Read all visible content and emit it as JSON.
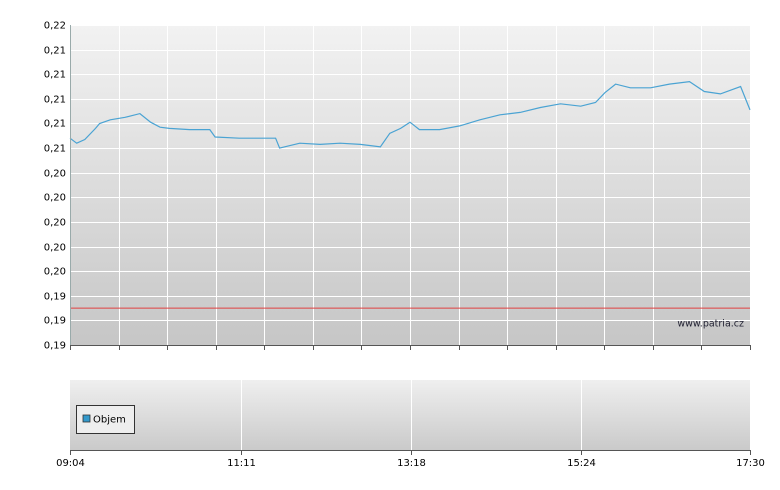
{
  "chart_data": [
    {
      "type": "line",
      "x": [
        "09:04",
        "09:09",
        "09:15",
        "09:23",
        "09:26",
        "09:34",
        "09:45",
        "09:56",
        "10:04",
        "10:11",
        "10:18",
        "10:33",
        "10:48",
        "10:52",
        "11:10",
        "11:37",
        "11:40",
        "11:55",
        "12:10",
        "12:25",
        "12:40",
        "12:55",
        "13:02",
        "13:10",
        "13:17",
        "13:24",
        "13:39",
        "13:54",
        "14:09",
        "14:24",
        "14:39",
        "14:54",
        "15:09",
        "15:24",
        "15:35",
        "15:42",
        "15:50",
        "16:01",
        "16:16",
        "16:30",
        "16:45",
        "16:56",
        "17:08",
        "17:23",
        "17:30"
      ],
      "series": [
        {
          "color": "#4aa3d3",
          "values": [
            0.2068,
            0.2064,
            0.2067,
            0.2076,
            0.208,
            0.2083,
            0.2085,
            0.2088,
            0.2081,
            0.2077,
            0.2076,
            0.2075,
            0.2075,
            0.2069,
            0.2068,
            0.2068,
            0.206,
            0.2064,
            0.2063,
            0.2064,
            0.2063,
            0.2061,
            0.2072,
            0.2076,
            0.2081,
            0.2075,
            0.2075,
            0.2078,
            0.2083,
            0.2087,
            0.2089,
            0.2093,
            0.2096,
            0.2094,
            0.2097,
            0.2105,
            0.2112,
            0.2109,
            0.2109,
            0.2112,
            0.2114,
            0.2106,
            0.2104,
            0.211,
            0.2091
          ]
        }
      ],
      "xlim": [
        "09:04",
        "17:30"
      ],
      "ylim": [
        0.19,
        0.216
      ],
      "yticks": [
        {
          "value": 0.19,
          "label": "0,19"
        },
        {
          "value": 0.192,
          "label": "0,19"
        },
        {
          "value": 0.194,
          "label": "0,19"
        },
        {
          "value": 0.196,
          "label": "0,20"
        },
        {
          "value": 0.198,
          "label": "0,20"
        },
        {
          "value": 0.2,
          "label": "0,20"
        },
        {
          "value": 0.202,
          "label": "0,20"
        },
        {
          "value": 0.204,
          "label": "0,20"
        },
        {
          "value": 0.206,
          "label": "0,21"
        },
        {
          "value": 0.208,
          "label": "0,21"
        },
        {
          "value": 0.21,
          "label": "0,21"
        },
        {
          "value": 0.212,
          "label": "0,21"
        },
        {
          "value": 0.214,
          "label": "0,21"
        },
        {
          "value": 0.216,
          "label": "0,22"
        }
      ],
      "reference_line": {
        "value": 0.193,
        "color": "#e04040"
      },
      "watermark": "www.patria.cz",
      "grid": true
    },
    {
      "type": "bar",
      "series": [
        {
          "name": "Objem",
          "color": "#3399cc",
          "values": []
        }
      ],
      "xlim": [
        "09:04",
        "17:30"
      ],
      "xticks": [
        "09:04",
        "11:11",
        "13:18",
        "15:24",
        "17:30"
      ],
      "grid": true
    }
  ]
}
